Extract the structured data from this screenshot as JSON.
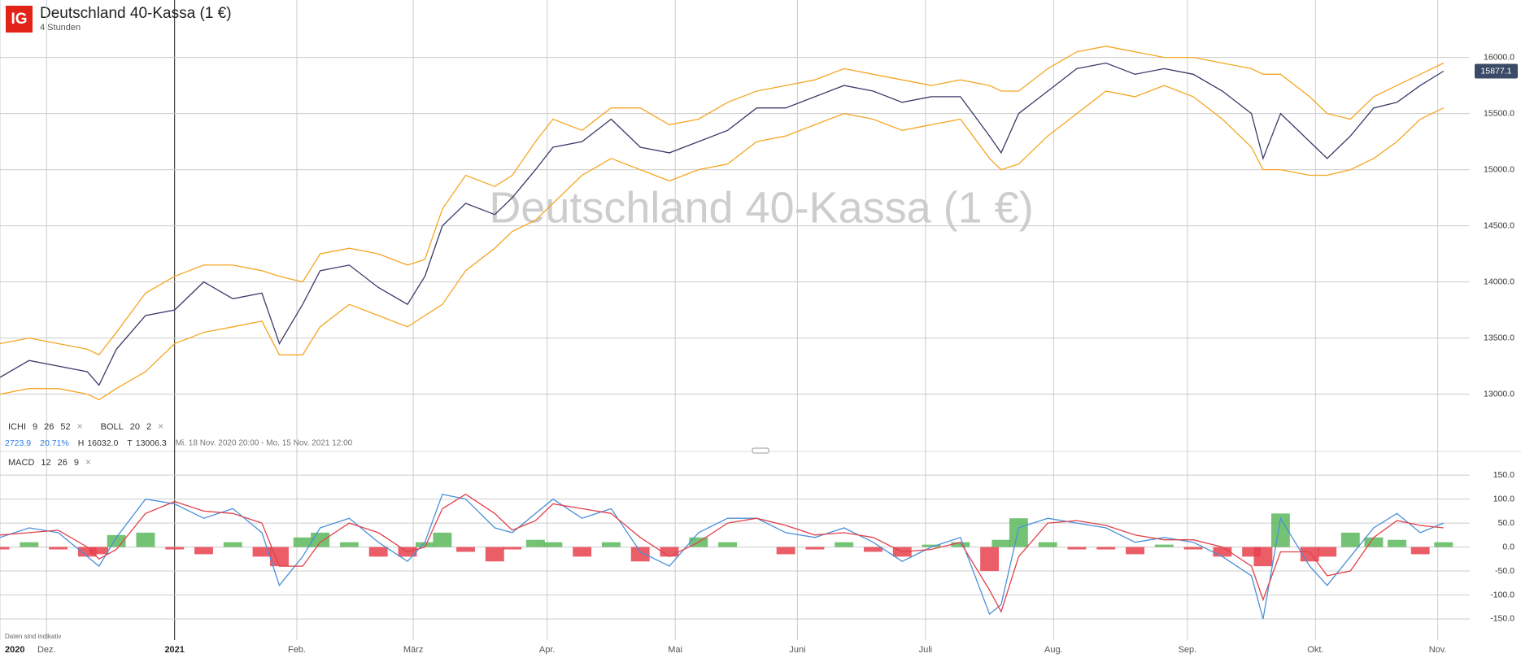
{
  "header": {
    "logo": "IG",
    "title": "Deutschland 40-Kassa (1 €)",
    "subtitle": "4 Stunden",
    "watermark": "Deutschland 40-Kassa (1 €)"
  },
  "legend": {
    "indicators": [
      {
        "name": "ICHI",
        "params": [
          "9",
          "26",
          "52"
        ],
        "close": "×"
      },
      {
        "name": "BOLL",
        "params": [
          "20",
          "2"
        ],
        "close": "×"
      }
    ],
    "stats": {
      "change": "2723.9",
      "change_pct": "20.71%",
      "high_label": "H",
      "high": "16032.0",
      "low_label": "T",
      "low": "13006.3",
      "range": "Mi. 18 Nov. 2020 20:00 - Mo. 15 Nov. 2021 12:00"
    },
    "macd": {
      "name": "MACD",
      "params": [
        "12",
        "26",
        "9"
      ],
      "close": "×"
    }
  },
  "footer": {
    "note": "Daten sind indikativ"
  },
  "chart_data": [
    {
      "type": "line",
      "last_price": 15877.1,
      "x": [
        0,
        5,
        10,
        15,
        17,
        20,
        25,
        30,
        35,
        40,
        45,
        48,
        52,
        55,
        60,
        65,
        70,
        73,
        76,
        80,
        85,
        88,
        92,
        95,
        100,
        105,
        110,
        115,
        120,
        125,
        130,
        135,
        140,
        145,
        150,
        155,
        160,
        165,
        170,
        172,
        175,
        180,
        185,
        190,
        195,
        200,
        205,
        210,
        215,
        217,
        220,
        225,
        228,
        232,
        236,
        240,
        244,
        248
      ],
      "series": [
        {
          "name": "Kurs",
          "color": "#3a3a6a",
          "values": [
            13150,
            13300,
            13250,
            13200,
            13080,
            13400,
            13700,
            13750,
            14000,
            13850,
            13900,
            13450,
            13800,
            14100,
            14150,
            13950,
            13800,
            14050,
            14500,
            14700,
            14600,
            14750,
            15000,
            15200,
            15250,
            15450,
            15200,
            15150,
            15250,
            15350,
            15550,
            15550,
            15650,
            15750,
            15700,
            15600,
            15650,
            15650,
            15300,
            15150,
            15500,
            15700,
            15900,
            15950,
            15850,
            15900,
            15850,
            15700,
            15500,
            15100,
            15500,
            15250,
            15100,
            15300,
            15550,
            15600,
            15750,
            15877.1
          ]
        },
        {
          "name": "BOLL oben",
          "color": "#f5a623",
          "values": [
            13450,
            13500,
            13450,
            13400,
            13350,
            13550,
            13900,
            14050,
            14150,
            14150,
            14100,
            14050,
            14000,
            14250,
            14300,
            14250,
            14150,
            14200,
            14650,
            14950,
            14850,
            14950,
            15250,
            15450,
            15350,
            15550,
            15550,
            15400,
            15450,
            15600,
            15700,
            15750,
            15800,
            15900,
            15850,
            15800,
            15750,
            15800,
            15750,
            15700,
            15700,
            15900,
            16050,
            16100,
            16050,
            16000,
            16000,
            15950,
            15900,
            15850,
            15850,
            15650,
            15500,
            15450,
            15650,
            15750,
            15850,
            15950
          ]
        },
        {
          "name": "BOLL unten",
          "color": "#f5a623",
          "values": [
            13000,
            13050,
            13050,
            13000,
            12950,
            13050,
            13200,
            13450,
            13550,
            13600,
            13650,
            13350,
            13350,
            13600,
            13800,
            13700,
            13600,
            13700,
            13800,
            14100,
            14300,
            14450,
            14550,
            14700,
            14950,
            15100,
            15000,
            14900,
            15000,
            15050,
            15250,
            15300,
            15400,
            15500,
            15450,
            15350,
            15400,
            15450,
            15100,
            15000,
            15050,
            15300,
            15500,
            15700,
            15650,
            15750,
            15650,
            15450,
            15200,
            15000,
            15000,
            14950,
            14950,
            15000,
            15100,
            15250,
            15450,
            15550
          ]
        }
      ],
      "xlim": [
        0,
        252.5
      ],
      "ylim": [
        12780,
        16120
      ],
      "yticks": [
        {
          "value": 13000,
          "label": "13000.0"
        },
        {
          "value": 13500,
          "label": "13500.0"
        },
        {
          "value": 14000,
          "label": "14000.0"
        },
        {
          "value": 14500,
          "label": "14500.0"
        },
        {
          "value": 15000,
          "label": "15000.0"
        },
        {
          "value": 15500,
          "label": "15500.0"
        },
        {
          "value": 16000,
          "label": "16000.0"
        }
      ],
      "grid": true
    },
    {
      "type": "macd",
      "x": [
        0,
        5,
        10,
        15,
        17,
        20,
        25,
        30,
        35,
        40,
        45,
        48,
        52,
        55,
        60,
        65,
        70,
        73,
        76,
        80,
        85,
        88,
        92,
        95,
        100,
        105,
        110,
        115,
        120,
        125,
        130,
        135,
        140,
        145,
        150,
        155,
        160,
        165,
        170,
        172,
        175,
        180,
        185,
        190,
        195,
        200,
        205,
        210,
        215,
        217,
        220,
        225,
        228,
        232,
        236,
        240,
        244,
        248
      ],
      "series": [
        {
          "name": "MACD",
          "color": "#4a90d9",
          "values": [
            20,
            40,
            30,
            -20,
            -40,
            20,
            100,
            90,
            60,
            80,
            30,
            -80,
            -20,
            40,
            60,
            10,
            -30,
            10,
            110,
            100,
            40,
            30,
            70,
            100,
            60,
            80,
            -10,
            -40,
            30,
            60,
            60,
            30,
            20,
            40,
            10,
            -30,
            0,
            20,
            -140,
            -120,
            40,
            60,
            50,
            40,
            10,
            20,
            10,
            -20,
            -60,
            -150,
            60,
            -40,
            -80,
            -20,
            40,
            70,
            30,
            50
          ]
        },
        {
          "name": "Signal",
          "color": "#e0424d",
          "values": [
            25,
            30,
            35,
            0,
            -25,
            -5,
            70,
            95,
            75,
            70,
            50,
            -40,
            -40,
            10,
            50,
            30,
            -10,
            0,
            80,
            110,
            70,
            35,
            55,
            90,
            80,
            70,
            20,
            -20,
            10,
            50,
            60,
            45,
            25,
            30,
            20,
            -10,
            -5,
            10,
            -90,
            -135,
            -20,
            50,
            55,
            45,
            25,
            15,
            15,
            0,
            -40,
            -110,
            -10,
            -10,
            -60,
            -50,
            20,
            55,
            45,
            40
          ]
        }
      ],
      "histogram": {
        "positive_color": "#5cb85c",
        "negative_color": "#e8424d",
        "values": [
          -5,
          10,
          -5,
          -20,
          -15,
          25,
          30,
          -5,
          -15,
          10,
          -20,
          -40,
          20,
          30,
          10,
          -20,
          -20,
          10,
          30,
          -10,
          -30,
          -5,
          15,
          10,
          -20,
          10,
          -30,
          -20,
          20,
          10,
          0,
          -15,
          -5,
          10,
          -10,
          -20,
          5,
          10,
          -50,
          15,
          60,
          10,
          -5,
          -5,
          -15,
          5,
          -5,
          -20,
          -20,
          -40,
          70,
          -30,
          -20,
          30,
          20,
          15,
          -15,
          10
        ]
      },
      "xlim": [
        0,
        252.5
      ],
      "ylim": [
        -184,
        191
      ],
      "yticks": [
        {
          "value": -150,
          "label": "-150.0"
        },
        {
          "value": -100,
          "label": "-100.0"
        },
        {
          "value": -50,
          "label": "-50.0"
        },
        {
          "value": 0,
          "label": "0.0"
        },
        {
          "value": 50,
          "label": "50.0"
        },
        {
          "value": 100,
          "label": "100.0"
        },
        {
          "value": 150,
          "label": "150.0"
        }
      ],
      "xticks": [
        {
          "value": 0,
          "label": "2020"
        },
        {
          "value": 8,
          "label": "Dez."
        },
        {
          "value": 30,
          "label": "2021"
        },
        {
          "value": 51,
          "label": "Feb."
        },
        {
          "value": 71,
          "label": "März"
        },
        {
          "value": 94,
          "label": "Apr."
        },
        {
          "value": 116,
          "label": "Mai"
        },
        {
          "value": 137,
          "label": "Juni"
        },
        {
          "value": 159,
          "label": "Juli"
        },
        {
          "value": 181,
          "label": "Aug."
        },
        {
          "value": 204,
          "label": "Sep."
        },
        {
          "value": 226,
          "label": "Okt."
        },
        {
          "value": 247,
          "label": "Nov."
        }
      ],
      "grid": true
    }
  ]
}
